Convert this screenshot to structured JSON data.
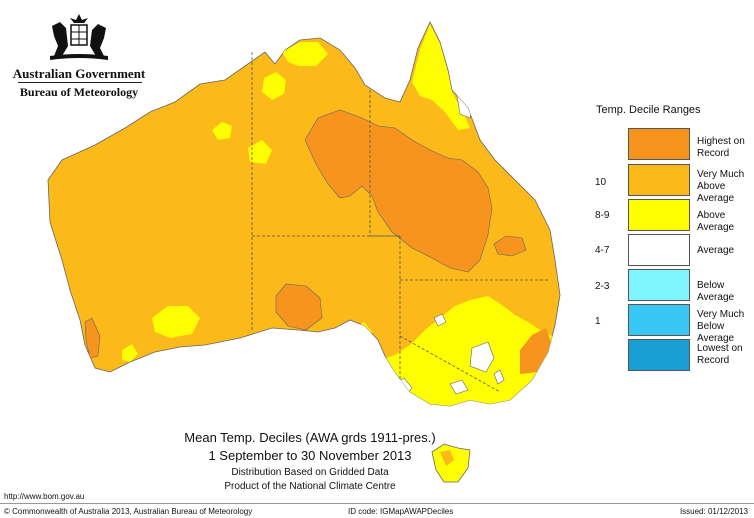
{
  "header": {
    "government": "Australian Government",
    "bureau": "Bureau of Meteorology"
  },
  "legend": {
    "title": "Temp. Decile Ranges",
    "entries": [
      {
        "range": "",
        "label": "Highest on Record",
        "color": "#f7941d"
      },
      {
        "range": "10",
        "label": "Very Much Above Average",
        "color": "#fbb91a"
      },
      {
        "range": "8-9",
        "label": "Above Average",
        "color": "#fefe00"
      },
      {
        "range": "4-7",
        "label": "Average",
        "color": "#ffffff"
      },
      {
        "range": "2-3",
        "label": "Below Average",
        "color": "#7ff5ff"
      },
      {
        "range": "1",
        "label": "Very Much Below Average",
        "color": "#38c6f4"
      },
      {
        "range": "",
        "label": "Lowest on Record",
        "color": "#1a9fd4"
      }
    ]
  },
  "title": {
    "line1": "Mean Temp. Deciles (AWA grds 1911-pres.)",
    "line2": "1 September to 30 November 2013",
    "line3": "Distribution Based on Gridded Data",
    "line4": "Product of the National Climate Centre"
  },
  "footer": {
    "url": "http://www.bom.gov.au",
    "copyright": "© Commonwealth of Australia 2013, Australian Bureau of Meteorology",
    "id_code": "ID code: IGMapAWAPDeciles",
    "issued": "Issued: 01/12/2013"
  },
  "map": {
    "colors": {
      "very_much_above": "#fbb91a",
      "highest": "#f7941d",
      "above": "#fefe00",
      "average": "#ffffff"
    }
  }
}
